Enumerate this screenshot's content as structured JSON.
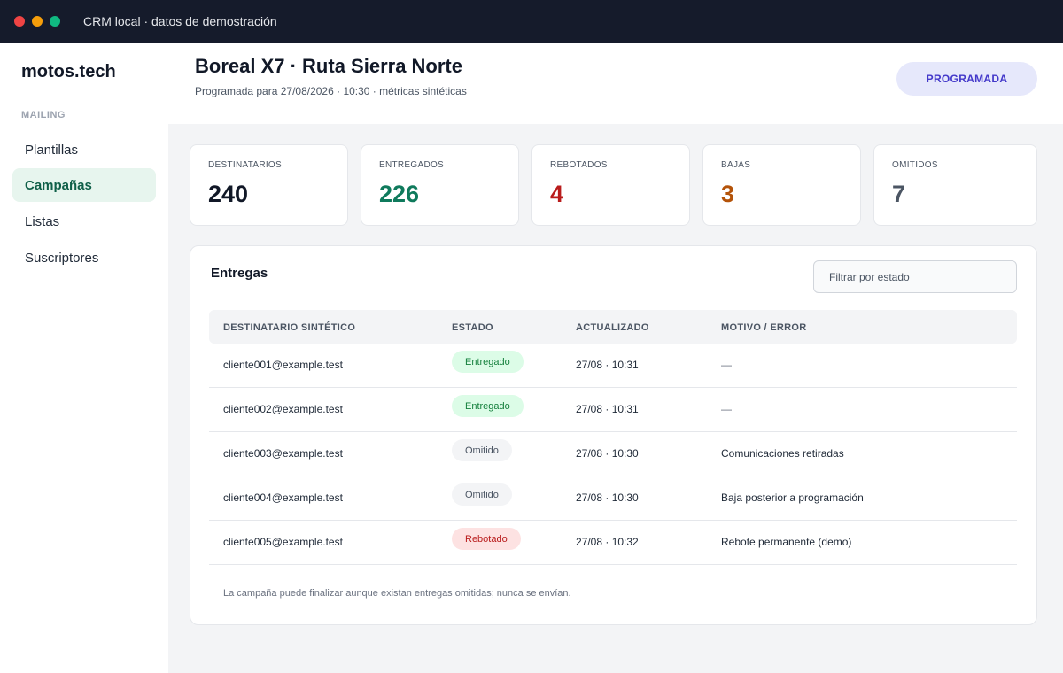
{
  "window": {
    "title": "CRM local · datos de demostración"
  },
  "sidebar": {
    "brand": "motos.tech",
    "section_label": "MAILING",
    "items": [
      {
        "label": "Plantillas",
        "active": false
      },
      {
        "label": "Campañas",
        "active": true
      },
      {
        "label": "Listas",
        "active": false
      },
      {
        "label": "Suscriptores",
        "active": false
      }
    ]
  },
  "header": {
    "title": "Boreal X7 · Ruta Sierra Norte",
    "subtitle": "Programada para 27/08/2026 · 10:30 · métricas sintéticas",
    "status": "PROGRAMADA"
  },
  "stats": [
    {
      "label": "DESTINATARIOS",
      "value": "240",
      "color": "#111827"
    },
    {
      "label": "ENTREGADOS",
      "value": "226",
      "color": "#0f7a5c"
    },
    {
      "label": "REBOTADOS",
      "value": "4",
      "color": "#b91c1c"
    },
    {
      "label": "BAJAS",
      "value": "3",
      "color": "#b45309"
    },
    {
      "label": "OMITIDOS",
      "value": "7",
      "color": "#4b5563"
    }
  ],
  "deliveries": {
    "title": "Entregas",
    "filter_placeholder": "Filtrar por estado",
    "columns": [
      "DESTINATARIO SINTÉTICO",
      "ESTADO",
      "ACTUALIZADO",
      "MOTIVO / ERROR"
    ],
    "rows": [
      {
        "recipient": "cliente001@example.test",
        "status": "Entregado",
        "updated": "27/08 · 10:31",
        "reason": "—"
      },
      {
        "recipient": "cliente002@example.test",
        "status": "Entregado",
        "updated": "27/08 · 10:31",
        "reason": "—"
      },
      {
        "recipient": "cliente003@example.test",
        "status": "Omitido",
        "updated": "27/08 · 10:30",
        "reason": "Comunicaciones retiradas"
      },
      {
        "recipient": "cliente004@example.test",
        "status": "Omitido",
        "updated": "27/08 · 10:30",
        "reason": "Baja posterior a programación"
      },
      {
        "recipient": "cliente005@example.test",
        "status": "Rebotado",
        "updated": "27/08 · 10:32",
        "reason": "Rebote permanente (demo)"
      }
    ],
    "footnote": "La campaña puede finalizar aunque existan entregas omitidas; nunca se envían."
  }
}
